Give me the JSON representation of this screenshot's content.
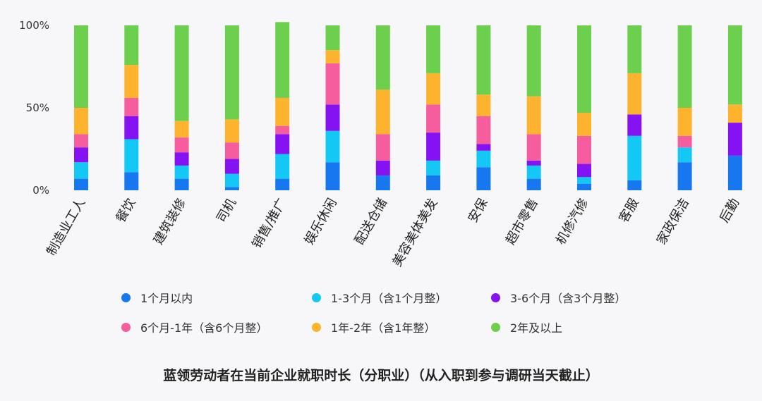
{
  "chart_data": {
    "type": "bar",
    "stacked": true,
    "title": "蓝领劳动者在当前企业就职时长（分职业）（从入职到参与调研当天截止）",
    "xlabel": "",
    "ylabel": "",
    "ylim": [
      0,
      100
    ],
    "yticks": [
      "0%",
      "50%",
      "100%"
    ],
    "grid": false,
    "legend_position": "bottom",
    "categories": [
      "制造业工人",
      "餐饮",
      "建筑装修",
      "司机",
      "销售/推广",
      "娱乐休闲",
      "配送仓储",
      "美容美体美发",
      "安保",
      "超市零售",
      "机修汽修",
      "客服",
      "家政保洁",
      "后勤"
    ],
    "series": [
      {
        "name": "1个月以内",
        "color": "#1677f0",
        "values": [
          7,
          11,
          7,
          2,
          7,
          17,
          9,
          9,
          14,
          7,
          4,
          6,
          17,
          21
        ]
      },
      {
        "name": "1-3个月（含1个月整）",
        "color": "#14c8f5",
        "values": [
          10,
          20,
          8,
          8,
          15,
          19,
          0,
          9,
          10,
          8,
          4,
          27,
          9,
          0
        ]
      },
      {
        "name": "3-6个月（含3个月整）",
        "color": "#8512f2",
        "values": [
          9,
          14,
          8,
          9,
          12,
          16,
          9,
          17,
          4,
          3,
          8,
          13,
          0,
          20
        ]
      },
      {
        "name": "6个月-1年（含6个月整）",
        "color": "#f55d9e",
        "values": [
          8,
          11,
          9,
          10,
          5,
          25,
          16,
          17,
          17,
          16,
          17,
          0,
          7,
          0
        ]
      },
      {
        "name": "1年-2年（含1年整）",
        "color": "#fdb32e",
        "values": [
          16,
          20,
          10,
          14,
          17,
          8,
          27,
          19,
          13,
          23,
          14,
          25,
          17,
          11
        ]
      },
      {
        "name": "2年及以上",
        "color": "#6ccf4d",
        "values": [
          50,
          24,
          58,
          57,
          46,
          15,
          39,
          29,
          42,
          43,
          53,
          29,
          50,
          48
        ]
      }
    ]
  }
}
